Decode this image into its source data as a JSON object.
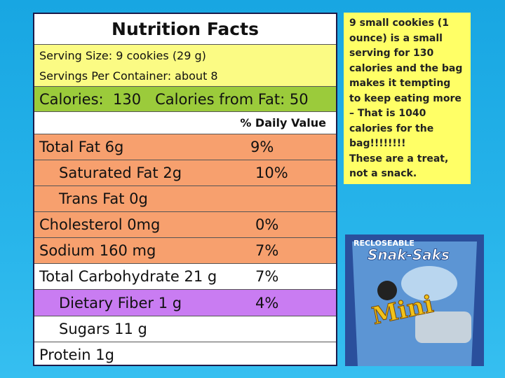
{
  "label": {
    "title": "Nutrition Facts",
    "serving_size": "Serving Size: 9 cookies (29 g)",
    "servings_per_container": "Servings Per Container: about 8",
    "calories": "Calories:  130   Calories from Fat: 50",
    "daily_value_header": "% Daily Value",
    "rows": [
      {
        "name": "Total Fat 6g",
        "percent": "9%"
      },
      {
        "name": "Saturated Fat 2g",
        "percent": "10%"
      },
      {
        "name": "Trans Fat 0g"
      },
      {
        "name": "Cholesterol 0mg",
        "percent": "0%"
      },
      {
        "name": "Sodium 160 mg",
        "percent": "7%"
      },
      {
        "name": "Total Carbohydrate 21 g",
        "percent": "7%"
      },
      {
        "name": "Dietary Fiber 1 g",
        "percent": "4%"
      },
      {
        "name": "Sugars  11 g"
      },
      {
        "name": "Protein  1g"
      }
    ]
  },
  "note": {
    "text": "9 small cookies (1 ounce) is a small serving for 130 calories and the bag makes it tempting to keep eating more – That is 1040 calories for the bag!!!!!!!!",
    "emphasis": "These are a treat, not a snack."
  },
  "image": {
    "tag": "RECLOSEABLE",
    "brand": "Snak-Saks",
    "product": "Mini"
  }
}
